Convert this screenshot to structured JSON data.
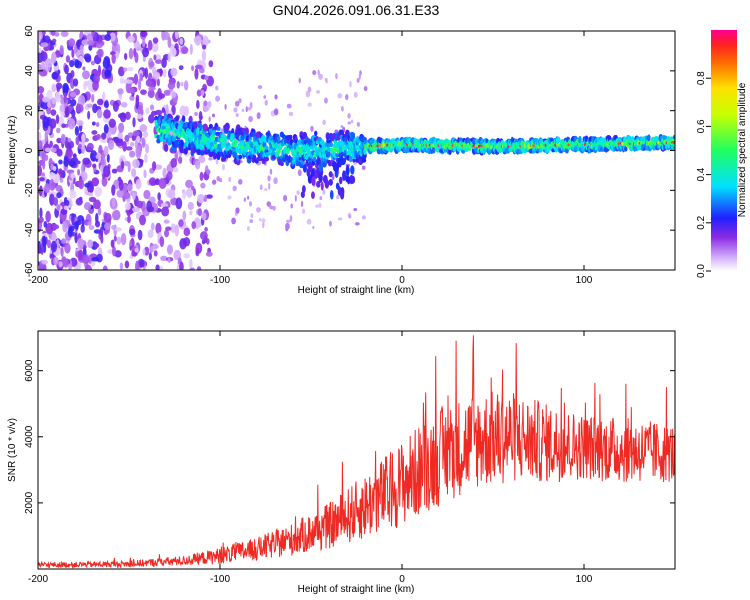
{
  "title": "GN04.2026.091.06.31.E33",
  "colors": {
    "snr_line": "#ee2a22",
    "axis": "#000000",
    "background": "#ffffff"
  },
  "chart_data": [
    {
      "type": "heatmap",
      "xlabel": "Height of straight line (km)",
      "ylabel": "Frequency (Hz)",
      "xlim": [
        -200,
        150
      ],
      "ylim": [
        -60,
        60
      ],
      "xticks": [
        -200,
        -100,
        0,
        100
      ],
      "yticks": [
        -60,
        -40,
        -20,
        0,
        20,
        40,
        60
      ],
      "colorbar": {
        "label": "Normalized spectral amplitude",
        "range": [
          0,
          1
        ],
        "ticks": [
          "0.0",
          "0.2",
          "0.4",
          "0.6",
          "0.8"
        ],
        "tick_values": [
          0.0,
          0.2,
          0.4,
          0.6,
          0.8
        ]
      },
      "ridge": {
        "description_points_x": [
          -130,
          -100,
          -80,
          -60,
          -40,
          -20,
          0,
          50,
          100,
          150
        ],
        "description_points_freq": [
          10,
          4,
          2,
          0,
          0,
          2,
          3,
          2,
          3,
          4
        ]
      }
    },
    {
      "type": "line",
      "xlabel": "Height of straight line (km)",
      "ylabel": "SNR (10 * v/v)",
      "xlim": [
        -200,
        150
      ],
      "ylim": [
        0,
        7200
      ],
      "xticks": [
        -200,
        -100,
        0,
        100
      ],
      "yticks": [
        2000,
        4000,
        6000
      ],
      "envelope_x": [
        -200,
        -150,
        -120,
        -100,
        -80,
        -60,
        -40,
        -20,
        0,
        20,
        40,
        60,
        80,
        100,
        120,
        150
      ],
      "envelope_mean": [
        120,
        150,
        250,
        400,
        600,
        900,
        1300,
        1900,
        2600,
        3400,
        3900,
        4000,
        3800,
        3700,
        3600,
        3500
      ],
      "envelope_spread": [
        80,
        100,
        150,
        250,
        350,
        500,
        700,
        1000,
        1300,
        1500,
        1500,
        1400,
        1200,
        1000,
        1000,
        900
      ]
    }
  ]
}
